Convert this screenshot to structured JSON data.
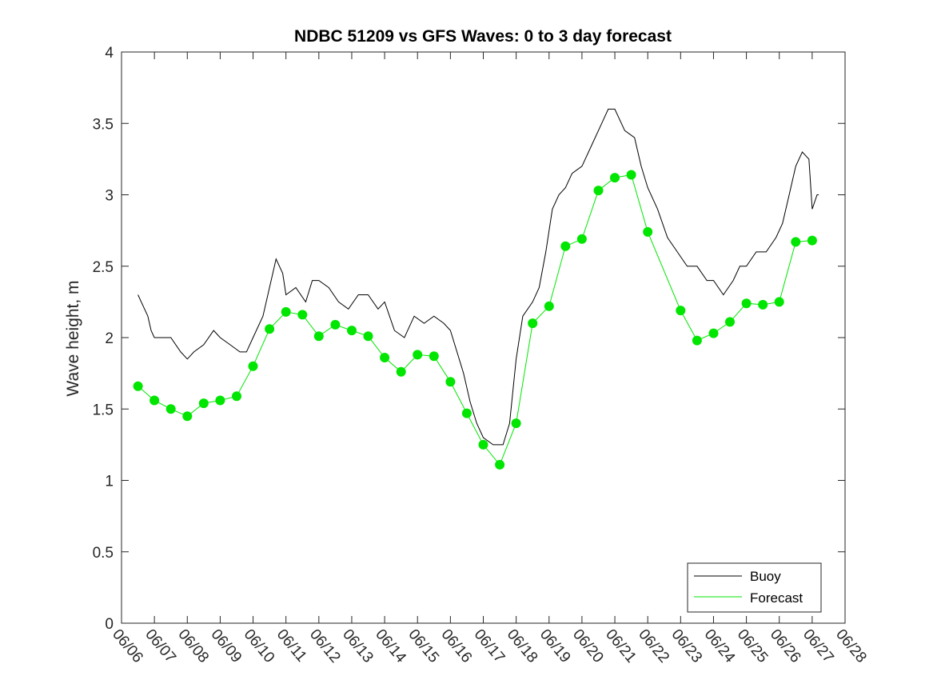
{
  "chart_data": {
    "type": "line",
    "title": "NDBC 51209 vs GFS Waves: 0 to 3 day forecast",
    "xlabel": "",
    "ylabel": "Wave height, m",
    "x_ticks": [
      "06/06",
      "06/07",
      "06/08",
      "06/09",
      "06/10",
      "06/11",
      "06/12",
      "06/13",
      "06/14",
      "06/15",
      "06/16",
      "06/17",
      "06/18",
      "06/19",
      "06/20",
      "06/21",
      "06/22",
      "06/23",
      "06/24",
      "06/25",
      "06/26",
      "06/27",
      "06/28"
    ],
    "y_ticks": [
      "0",
      "0.5",
      "1",
      "1.5",
      "2",
      "2.5",
      "3",
      "3.5",
      "4"
    ],
    "xlim": [
      0,
      22
    ],
    "ylim": [
      0,
      4
    ],
    "grid": false,
    "legend_position": "bottom-right",
    "legend": [
      {
        "label": "Buoy",
        "color": "#000000"
      },
      {
        "label": "Forecast",
        "color": "#00e600"
      }
    ],
    "series": [
      {
        "name": "Buoy",
        "color": "#000000",
        "x_unit": "days since 06/06",
        "points": [
          [
            0.5,
            2.3
          ],
          [
            0.6,
            2.25
          ],
          [
            0.7,
            2.2
          ],
          [
            0.8,
            2.15
          ],
          [
            0.9,
            2.05
          ],
          [
            1.0,
            2.0
          ],
          [
            1.2,
            2.0
          ],
          [
            1.5,
            2.0
          ],
          [
            1.8,
            1.9
          ],
          [
            2.0,
            1.85
          ],
          [
            2.2,
            1.9
          ],
          [
            2.5,
            1.95
          ],
          [
            2.8,
            2.05
          ],
          [
            3.0,
            2.0
          ],
          [
            3.3,
            1.95
          ],
          [
            3.6,
            1.9
          ],
          [
            3.8,
            1.9
          ],
          [
            4.0,
            2.0
          ],
          [
            4.3,
            2.15
          ],
          [
            4.5,
            2.35
          ],
          [
            4.7,
            2.55
          ],
          [
            4.9,
            2.45
          ],
          [
            5.0,
            2.3
          ],
          [
            5.3,
            2.35
          ],
          [
            5.6,
            2.25
          ],
          [
            5.8,
            2.4
          ],
          [
            6.0,
            2.4
          ],
          [
            6.3,
            2.35
          ],
          [
            6.6,
            2.25
          ],
          [
            6.9,
            2.2
          ],
          [
            7.2,
            2.3
          ],
          [
            7.5,
            2.3
          ],
          [
            7.8,
            2.2
          ],
          [
            8.0,
            2.25
          ],
          [
            8.3,
            2.05
          ],
          [
            8.6,
            2.0
          ],
          [
            8.9,
            2.15
          ],
          [
            9.2,
            2.1
          ],
          [
            9.5,
            2.15
          ],
          [
            9.8,
            2.1
          ],
          [
            10.0,
            2.05
          ],
          [
            10.2,
            1.9
          ],
          [
            10.4,
            1.75
          ],
          [
            10.6,
            1.55
          ],
          [
            10.8,
            1.4
          ],
          [
            11.0,
            1.3
          ],
          [
            11.3,
            1.25
          ],
          [
            11.6,
            1.25
          ],
          [
            11.8,
            1.4
          ],
          [
            12.0,
            1.85
          ],
          [
            12.2,
            2.15
          ],
          [
            12.5,
            2.25
          ],
          [
            12.7,
            2.35
          ],
          [
            12.9,
            2.6
          ],
          [
            13.1,
            2.9
          ],
          [
            13.3,
            3.0
          ],
          [
            13.5,
            3.05
          ],
          [
            13.7,
            3.15
          ],
          [
            14.0,
            3.2
          ],
          [
            14.3,
            3.35
          ],
          [
            14.6,
            3.5
          ],
          [
            14.8,
            3.6
          ],
          [
            15.0,
            3.6
          ],
          [
            15.3,
            3.45
          ],
          [
            15.6,
            3.4
          ],
          [
            15.8,
            3.2
          ],
          [
            16.0,
            3.05
          ],
          [
            16.3,
            2.9
          ],
          [
            16.6,
            2.7
          ],
          [
            16.9,
            2.6
          ],
          [
            17.2,
            2.5
          ],
          [
            17.5,
            2.5
          ],
          [
            17.8,
            2.4
          ],
          [
            18.0,
            2.4
          ],
          [
            18.3,
            2.3
          ],
          [
            18.6,
            2.4
          ],
          [
            18.8,
            2.5
          ],
          [
            19.0,
            2.5
          ],
          [
            19.3,
            2.6
          ],
          [
            19.6,
            2.6
          ],
          [
            19.9,
            2.7
          ],
          [
            20.1,
            2.8
          ],
          [
            20.3,
            3.0
          ],
          [
            20.5,
            3.2
          ],
          [
            20.7,
            3.3
          ],
          [
            20.9,
            3.25
          ],
          [
            21.0,
            2.9
          ],
          [
            21.15,
            3.0
          ],
          [
            21.2,
            3.0
          ]
        ]
      },
      {
        "name": "Forecast",
        "color": "#00e600",
        "x_unit": "days since 06/06",
        "points": [
          [
            0.5,
            1.66
          ],
          [
            1.0,
            1.56
          ],
          [
            1.5,
            1.5
          ],
          [
            2.0,
            1.45
          ],
          [
            2.5,
            1.54
          ],
          [
            3.0,
            1.56
          ],
          [
            3.5,
            1.59
          ],
          [
            4.0,
            1.8
          ],
          [
            4.5,
            2.06
          ],
          [
            5.0,
            2.18
          ],
          [
            5.5,
            2.16
          ],
          [
            6.0,
            2.01
          ],
          [
            6.5,
            2.09
          ],
          [
            7.0,
            2.05
          ],
          [
            7.5,
            2.01
          ],
          [
            8.0,
            1.86
          ],
          [
            8.5,
            1.76
          ],
          [
            9.0,
            1.88
          ],
          [
            9.5,
            1.87
          ],
          [
            10.0,
            1.69
          ],
          [
            10.5,
            1.47
          ],
          [
            11.0,
            1.25
          ],
          [
            11.5,
            1.11
          ],
          [
            12.0,
            1.4
          ],
          [
            12.5,
            2.1
          ],
          [
            13.0,
            2.22
          ],
          [
            13.5,
            2.64
          ],
          [
            14.0,
            2.69
          ],
          [
            14.5,
            3.03
          ],
          [
            15.0,
            3.12
          ],
          [
            15.5,
            3.14
          ],
          [
            16.0,
            2.74
          ],
          [
            17.0,
            2.19
          ],
          [
            17.5,
            1.98
          ],
          [
            18.0,
            2.03
          ],
          [
            18.5,
            2.11
          ],
          [
            19.0,
            2.24
          ],
          [
            19.5,
            2.23
          ],
          [
            20.0,
            2.25
          ],
          [
            20.5,
            2.67
          ],
          [
            21.0,
            2.68
          ]
        ]
      }
    ]
  }
}
